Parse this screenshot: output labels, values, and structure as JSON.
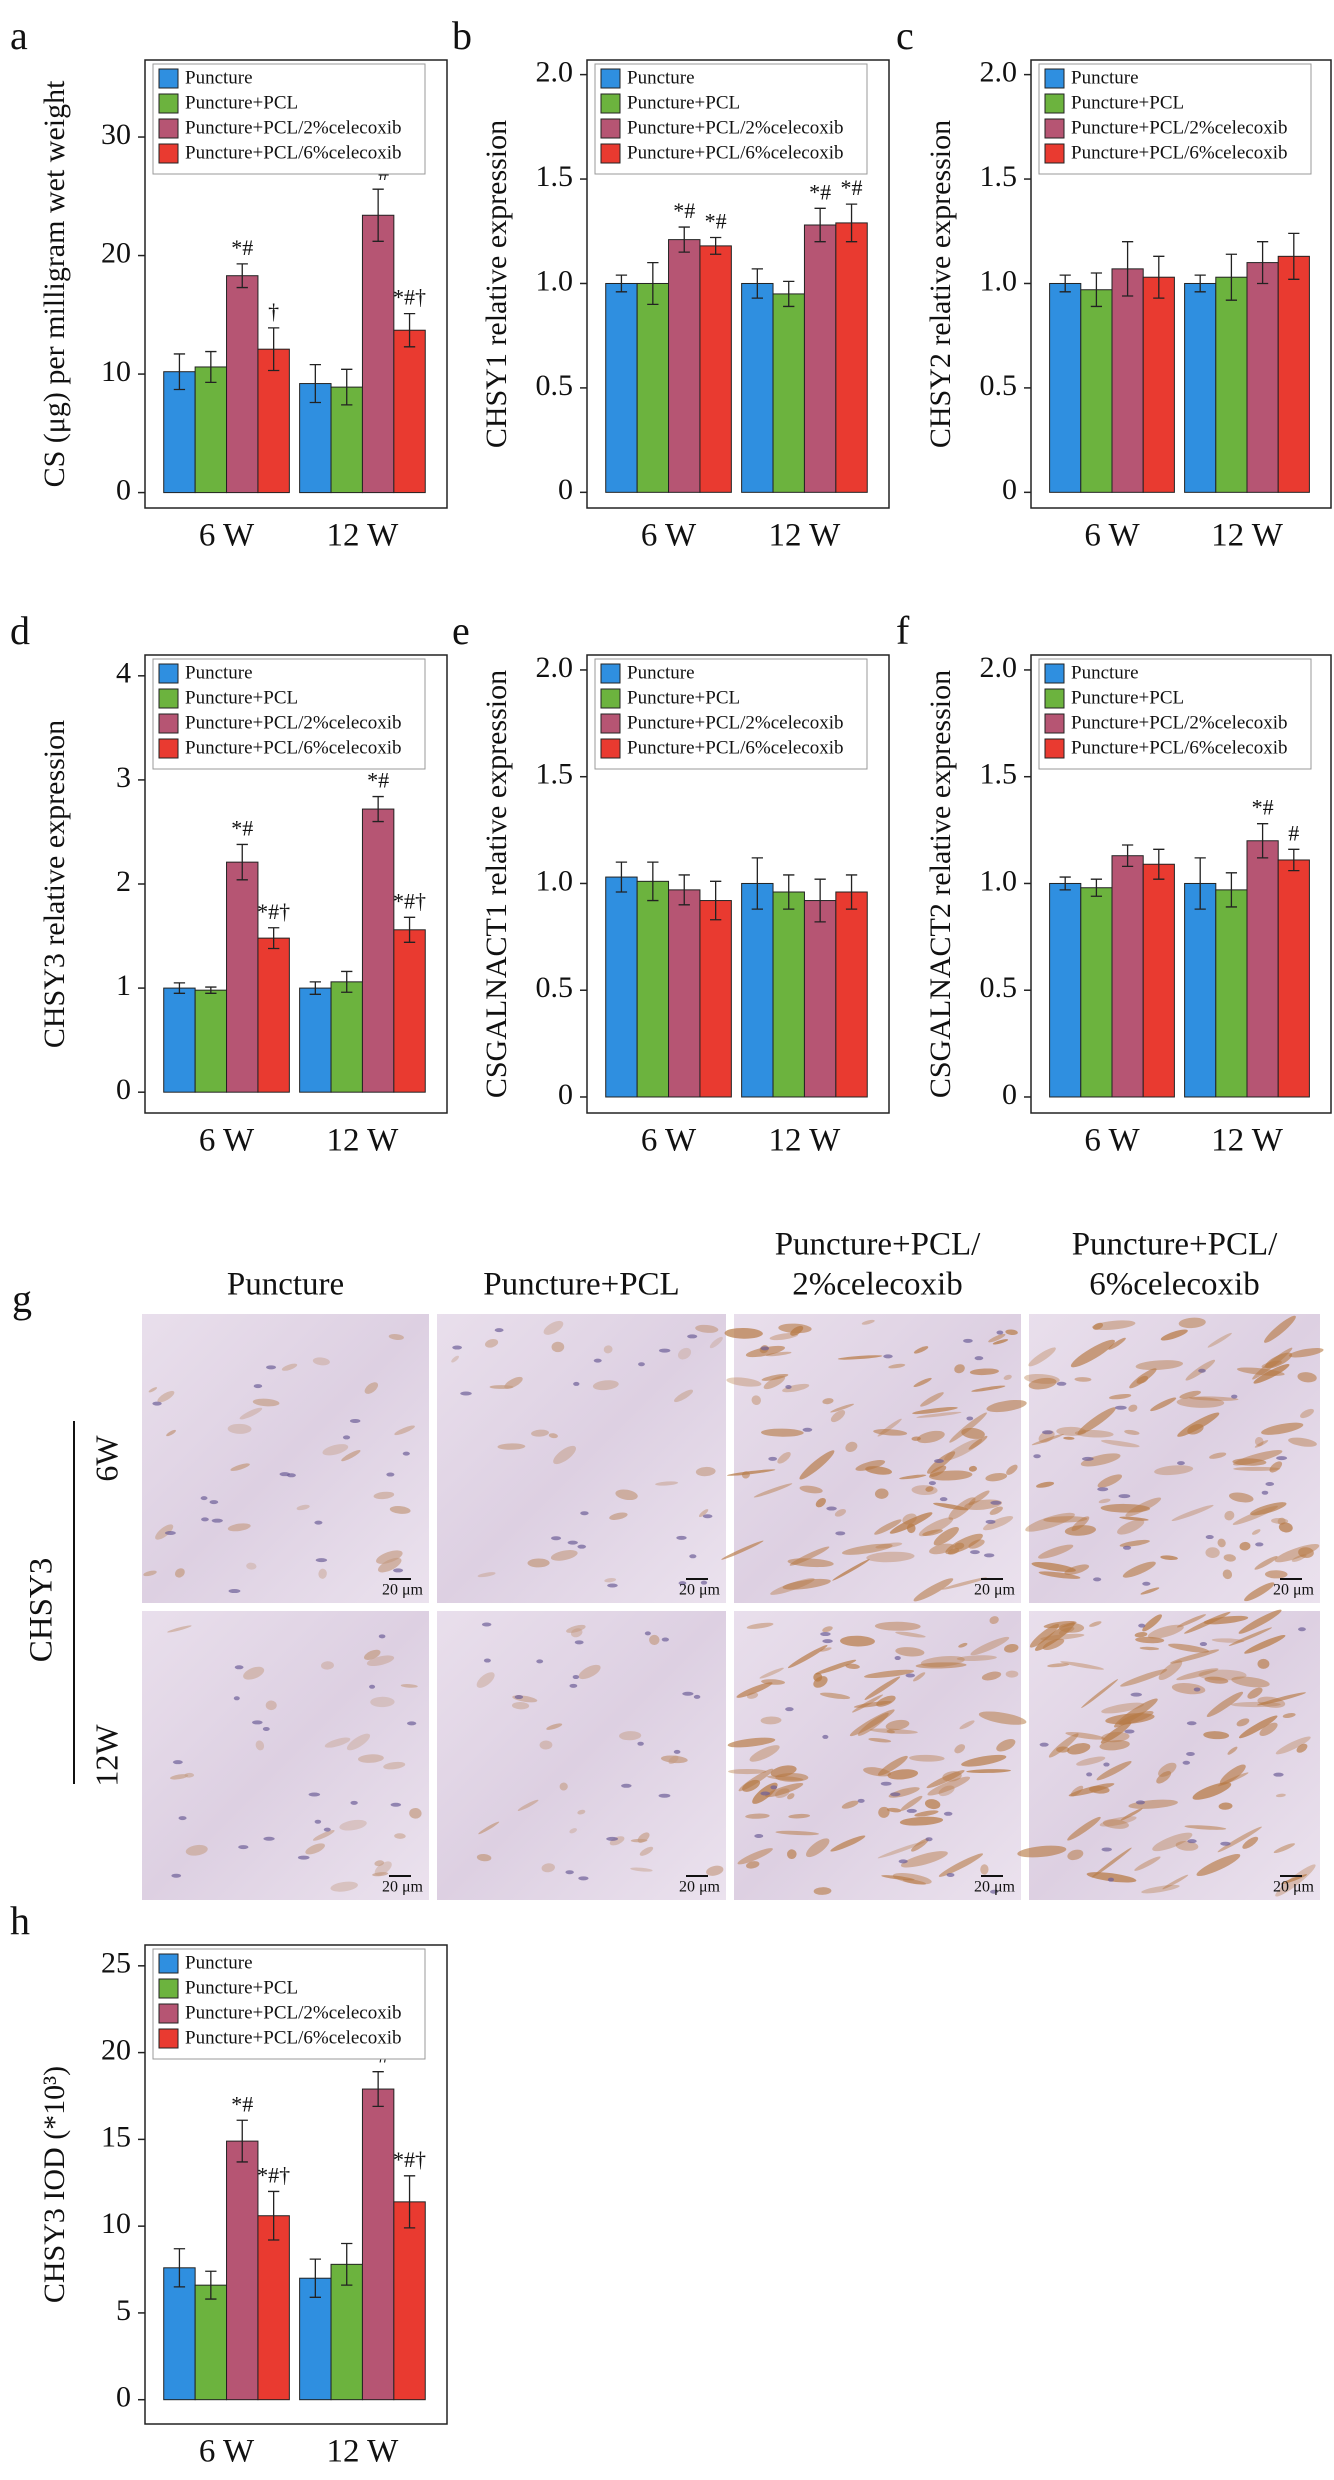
{
  "chart_data": [
    {
      "type": "bar",
      "panel": "a",
      "ylabel": "CS (μg) per milligram wet weight",
      "categories": [
        "6 W",
        "12 W"
      ],
      "series": [
        {
          "name": "Puncture",
          "color": "#2f8fe0",
          "values": [
            10.2,
            9.2
          ],
          "errors": [
            1.5,
            1.6
          ],
          "annotations": [
            null,
            null
          ]
        },
        {
          "name": "Puncture+PCL",
          "color": "#6cb33e",
          "values": [
            10.6,
            8.9
          ],
          "errors": [
            1.3,
            1.5
          ],
          "annotations": [
            null,
            null
          ]
        },
        {
          "name": "Puncture+PCL/2%celecoxib",
          "color": "#b65573",
          "values": [
            18.3,
            23.4
          ],
          "errors": [
            1.0,
            2.2
          ],
          "annotations": [
            "*#",
            "*#"
          ]
        },
        {
          "name": "Puncture+PCL/6%celecoxib",
          "color": "#e93a30",
          "values": [
            12.1,
            13.7
          ],
          "errors": [
            1.8,
            1.4
          ],
          "annotations": [
            "†",
            "*#†"
          ]
        }
      ],
      "ylim": [
        -1.3,
        36.5
      ],
      "yticks": [
        0,
        10,
        20,
        30
      ],
      "legend": "upper left"
    },
    {
      "type": "bar",
      "panel": "b",
      "ylabel": "CHSY1 relative expression",
      "categories": [
        "6 W",
        "12 W"
      ],
      "series": [
        {
          "name": "Puncture",
          "color": "#2f8fe0",
          "values": [
            1.0,
            1.0
          ],
          "errors": [
            0.04,
            0.07
          ],
          "annotations": [
            null,
            null
          ]
        },
        {
          "name": "Puncture+PCL",
          "color": "#6cb33e",
          "values": [
            1.0,
            0.95
          ],
          "errors": [
            0.1,
            0.06
          ],
          "annotations": [
            null,
            null
          ]
        },
        {
          "name": "Puncture+PCL/2%celecoxib",
          "color": "#b65573",
          "values": [
            1.21,
            1.28
          ],
          "errors": [
            0.06,
            0.08
          ],
          "annotations": [
            "*#",
            "*#"
          ]
        },
        {
          "name": "Puncture+PCL/6%celecoxib",
          "color": "#e93a30",
          "values": [
            1.18,
            1.29
          ],
          "errors": [
            0.04,
            0.09
          ],
          "annotations": [
            "*#",
            "*#"
          ]
        }
      ],
      "ylim": [
        -0.075,
        2.07
      ],
      "yticks": [
        0,
        0.5,
        {
          "value": 1,
          "label": "1.0"
        },
        1.5,
        {
          "value": 2,
          "label": "2.0"
        }
      ],
      "legend": "upper left"
    },
    {
      "type": "bar",
      "panel": "c",
      "ylabel": "CHSY2 relative expression",
      "categories": [
        "6 W",
        "12 W"
      ],
      "series": [
        {
          "name": "Puncture",
          "color": "#2f8fe0",
          "values": [
            1.0,
            1.0
          ],
          "errors": [
            0.04,
            0.04
          ],
          "annotations": [
            null,
            null
          ]
        },
        {
          "name": "Puncture+PCL",
          "color": "#6cb33e",
          "values": [
            0.97,
            1.03
          ],
          "errors": [
            0.08,
            0.11
          ],
          "annotations": [
            null,
            null
          ]
        },
        {
          "name": "Puncture+PCL/2%celecoxib",
          "color": "#b65573",
          "values": [
            1.07,
            1.1
          ],
          "errors": [
            0.13,
            0.1
          ],
          "annotations": [
            null,
            null
          ]
        },
        {
          "name": "Puncture+PCL/6%celecoxib",
          "color": "#e93a30",
          "values": [
            1.03,
            1.13
          ],
          "errors": [
            0.1,
            0.11
          ],
          "annotations": [
            null,
            null
          ]
        }
      ],
      "ylim": [
        -0.075,
        2.07
      ],
      "yticks": [
        0,
        0.5,
        {
          "value": 1,
          "label": "1.0"
        },
        1.5,
        {
          "value": 2,
          "label": "2.0"
        }
      ],
      "legend": "upper left"
    },
    {
      "type": "bar",
      "panel": "d",
      "ylabel": "CHSY3 relative expression",
      "categories": [
        "6 W",
        "12 W"
      ],
      "series": [
        {
          "name": "Puncture",
          "color": "#2f8fe0",
          "values": [
            1.0,
            1.0
          ],
          "errors": [
            0.05,
            0.06
          ],
          "annotations": [
            null,
            null
          ]
        },
        {
          "name": "Puncture+PCL",
          "color": "#6cb33e",
          "values": [
            0.98,
            1.06
          ],
          "errors": [
            0.03,
            0.1
          ],
          "annotations": [
            null,
            null
          ]
        },
        {
          "name": "Puncture+PCL/2%celecoxib",
          "color": "#b65573",
          "values": [
            2.21,
            2.72
          ],
          "errors": [
            0.17,
            0.12
          ],
          "annotations": [
            "*#",
            "*#"
          ]
        },
        {
          "name": "Puncture+PCL/6%celecoxib",
          "color": "#e93a30",
          "values": [
            1.48,
            1.56
          ],
          "errors": [
            0.1,
            0.12
          ],
          "annotations": [
            "*#†",
            "*#†"
          ]
        }
      ],
      "ylim": [
        -0.2,
        4.2
      ],
      "yticks": [
        0,
        1,
        2,
        3,
        4
      ],
      "legend": "upper left"
    },
    {
      "type": "bar",
      "panel": "e",
      "ylabel": "CSGALNACT1 relative expression",
      "categories": [
        "6 W",
        "12 W"
      ],
      "series": [
        {
          "name": "Puncture",
          "color": "#2f8fe0",
          "values": [
            1.03,
            1.0
          ],
          "errors": [
            0.07,
            0.12
          ],
          "annotations": [
            null,
            null
          ]
        },
        {
          "name": "Puncture+PCL",
          "color": "#6cb33e",
          "values": [
            1.01,
            0.96
          ],
          "errors": [
            0.09,
            0.08
          ],
          "annotations": [
            null,
            null
          ]
        },
        {
          "name": "Puncture+PCL/2%celecoxib",
          "color": "#b65573",
          "values": [
            0.97,
            0.92
          ],
          "errors": [
            0.07,
            0.1
          ],
          "annotations": [
            null,
            null
          ]
        },
        {
          "name": "Puncture+PCL/6%celecoxib",
          "color": "#e93a30",
          "values": [
            0.92,
            0.96
          ],
          "errors": [
            0.09,
            0.08
          ],
          "annotations": [
            null,
            null
          ]
        }
      ],
      "ylim": [
        -0.075,
        2.07
      ],
      "yticks": [
        0,
        0.5,
        {
          "value": 1,
          "label": "1.0"
        },
        1.5,
        {
          "value": 2,
          "label": "2.0"
        }
      ],
      "legend": "upper left"
    },
    {
      "type": "bar",
      "panel": "f",
      "ylabel": "CSGALNACT2 relative expression",
      "categories": [
        "6 W",
        "12 W"
      ],
      "series": [
        {
          "name": "Puncture",
          "color": "#2f8fe0",
          "values": [
            1.0,
            1.0
          ],
          "errors": [
            0.03,
            0.12
          ],
          "annotations": [
            null,
            null
          ]
        },
        {
          "name": "Puncture+PCL",
          "color": "#6cb33e",
          "values": [
            0.98,
            0.97
          ],
          "errors": [
            0.04,
            0.08
          ],
          "annotations": [
            null,
            null
          ]
        },
        {
          "name": "Puncture+PCL/2%celecoxib",
          "color": "#b65573",
          "values": [
            1.13,
            1.2
          ],
          "errors": [
            0.05,
            0.08
          ],
          "annotations": [
            null,
            "*#"
          ]
        },
        {
          "name": "Puncture+PCL/6%celecoxib",
          "color": "#e93a30",
          "values": [
            1.09,
            1.11
          ],
          "errors": [
            0.07,
            0.05
          ],
          "annotations": [
            null,
            "#"
          ]
        }
      ],
      "ylim": [
        -0.075,
        2.07
      ],
      "yticks": [
        0,
        0.5,
        {
          "value": 1,
          "label": "1.0"
        },
        1.5,
        {
          "value": 2,
          "label": "2.0"
        }
      ],
      "legend": "upper left"
    },
    {
      "type": "bar",
      "panel": "h",
      "ylabel": "CHSY3 IOD (*10³)",
      "categories": [
        "6 W",
        "12 W"
      ],
      "series": [
        {
          "name": "Puncture",
          "color": "#2f8fe0",
          "values": [
            7.6,
            7.0
          ],
          "errors": [
            1.1,
            1.1
          ],
          "annotations": [
            null,
            null
          ]
        },
        {
          "name": "Puncture+PCL",
          "color": "#6cb33e",
          "values": [
            6.6,
            7.8
          ],
          "errors": [
            0.8,
            1.2
          ],
          "annotations": [
            null,
            null
          ]
        },
        {
          "name": "Puncture+PCL/2%celecoxib",
          "color": "#b65573",
          "values": [
            14.9,
            17.9
          ],
          "errors": [
            1.2,
            1.0
          ],
          "annotations": [
            "*#",
            "*#"
          ]
        },
        {
          "name": "Puncture+PCL/6%celecoxib",
          "color": "#e93a30",
          "values": [
            10.6,
            11.4
          ],
          "errors": [
            1.4,
            1.5
          ],
          "annotations": [
            "*#†",
            "*#†"
          ]
        }
      ],
      "ylim": [
        -1.4,
        26.2
      ],
      "yticks": [
        0,
        5,
        10,
        15,
        20,
        25
      ],
      "legend": "upper left"
    }
  ],
  "figure_g": {
    "panel": "g",
    "columns": [
      [
        "Puncture"
      ],
      [
        "Puncture+PCL"
      ],
      [
        "Puncture+PCL/",
        "2%celecoxib"
      ],
      [
        "Puncture+PCL/",
        "6%celecoxib"
      ]
    ],
    "rows": [
      "6W",
      "12W"
    ],
    "stain": "CHSY3",
    "scale_bar": "20 μm"
  }
}
